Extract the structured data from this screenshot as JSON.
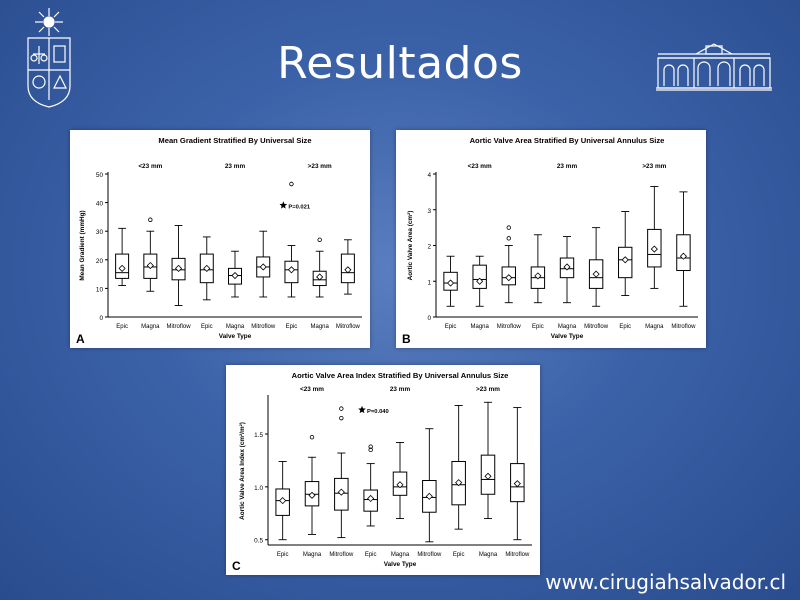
{
  "slide": {
    "title": "Resultados",
    "website": "www.cirugiahsalvador.cl"
  },
  "colors": {
    "background": "#3b62a8",
    "panel": "#ffffff",
    "ink": "#000000"
  },
  "logos": {
    "left": "university-crest-icon",
    "right": "hospital-building-icon"
  },
  "chart_data": [
    {
      "id": "A",
      "type": "box",
      "title": "Mean Gradient Stratified By Universal Size",
      "xlabel": "Valve Type",
      "ylabel": "Mean Gradient (mmHg)",
      "ylim": [
        0,
        50
      ],
      "yticks": [
        0,
        10,
        20,
        30,
        40,
        50
      ],
      "groups": [
        "<23 mm",
        "23 mm",
        ">23 mm"
      ],
      "categories": [
        "Epic",
        "Magna",
        "Mitroflow"
      ],
      "annotation": {
        "text": "P=0.021",
        "group": 2,
        "y": 38
      },
      "boxes": [
        {
          "min": 11,
          "q1": 13.5,
          "median": 15.5,
          "q3": 22,
          "max": 31,
          "mean": 17,
          "outliers": []
        },
        {
          "min": 9,
          "q1": 13.5,
          "median": 17.5,
          "q3": 22,
          "max": 30,
          "mean": 18,
          "outliers": [
            34
          ]
        },
        {
          "min": 4,
          "q1": 13,
          "median": 16.5,
          "q3": 20.5,
          "max": 32,
          "mean": 17,
          "outliers": []
        },
        {
          "min": 6,
          "q1": 12,
          "median": 16.5,
          "q3": 22,
          "max": 28,
          "mean": 17,
          "outliers": []
        },
        {
          "min": 7,
          "q1": 11.5,
          "median": 14.5,
          "q3": 17,
          "max": 23,
          "mean": 14.5,
          "outliers": []
        },
        {
          "min": 7,
          "q1": 14,
          "median": 17.5,
          "q3": 21,
          "max": 30,
          "mean": 17.5,
          "outliers": []
        },
        {
          "min": 7,
          "q1": 12,
          "median": 16.5,
          "q3": 19.5,
          "max": 25,
          "mean": 16.5,
          "outliers": [
            46.5
          ]
        },
        {
          "min": 7,
          "q1": 11,
          "median": 13,
          "q3": 16,
          "max": 23,
          "mean": 14,
          "outliers": [
            27
          ]
        },
        {
          "min": 8,
          "q1": 12,
          "median": 15.5,
          "q3": 22,
          "max": 27,
          "mean": 16.5,
          "outliers": []
        }
      ]
    },
    {
      "id": "B",
      "type": "box",
      "title": "Aortic Valve Area Stratified By Universal Annulus Size",
      "xlabel": "Valve Type",
      "ylabel": "Aortic Valve Area (cm²)",
      "ylim": [
        0,
        4
      ],
      "yticks": [
        0,
        1,
        2,
        3,
        4
      ],
      "groups": [
        "<23 mm",
        "23 mm",
        ">23 mm"
      ],
      "categories": [
        "Epic",
        "Magna",
        "Mitroflow"
      ],
      "boxes": [
        {
          "min": 0.3,
          "q1": 0.75,
          "median": 0.95,
          "q3": 1.25,
          "max": 1.7,
          "mean": 0.95,
          "outliers": []
        },
        {
          "min": 0.3,
          "q1": 0.8,
          "median": 1.05,
          "q3": 1.45,
          "max": 1.7,
          "mean": 1.0,
          "outliers": []
        },
        {
          "min": 0.4,
          "q1": 0.9,
          "median": 1.1,
          "q3": 1.4,
          "max": 2.0,
          "mean": 1.1,
          "outliers": [
            2.2,
            2.5
          ]
        },
        {
          "min": 0.4,
          "q1": 0.8,
          "median": 1.1,
          "q3": 1.4,
          "max": 2.3,
          "mean": 1.15,
          "outliers": []
        },
        {
          "min": 0.4,
          "q1": 1.1,
          "median": 1.35,
          "q3": 1.65,
          "max": 2.25,
          "mean": 1.4,
          "outliers": []
        },
        {
          "min": 0.3,
          "q1": 0.8,
          "median": 1.1,
          "q3": 1.6,
          "max": 2.5,
          "mean": 1.2,
          "outliers": []
        },
        {
          "min": 0.6,
          "q1": 1.1,
          "median": 1.6,
          "q3": 1.95,
          "max": 2.95,
          "mean": 1.6,
          "outliers": []
        },
        {
          "min": 0.8,
          "q1": 1.4,
          "median": 1.75,
          "q3": 2.45,
          "max": 3.65,
          "mean": 1.9,
          "outliers": []
        },
        {
          "min": 0.3,
          "q1": 1.3,
          "median": 1.65,
          "q3": 2.3,
          "max": 3.5,
          "mean": 1.7,
          "outliers": []
        }
      ]
    },
    {
      "id": "C",
      "type": "box",
      "title": "Aortic Valve Area Index Stratified By Universal Annulus Size",
      "xlabel": "Valve Type",
      "ylabel": "Aortic Valve Area Index (cm²/m²)",
      "ylim": [
        0.45,
        1.85
      ],
      "yticks": [
        0.5,
        1.0,
        1.5
      ],
      "groups": [
        "<23 mm",
        "23 mm",
        ">23 mm"
      ],
      "categories": [
        "Epic",
        "Magna",
        "Mitroflow"
      ],
      "annotation": {
        "text": "P=0.040",
        "group": 1,
        "y": 1.7
      },
      "boxes": [
        {
          "min": 0.5,
          "q1": 0.73,
          "median": 0.87,
          "q3": 0.98,
          "max": 1.24,
          "mean": 0.87,
          "outliers": []
        },
        {
          "min": 0.55,
          "q1": 0.82,
          "median": 0.93,
          "q3": 1.05,
          "max": 1.28,
          "mean": 0.92,
          "outliers": [
            1.47
          ]
        },
        {
          "min": 0.52,
          "q1": 0.78,
          "median": 0.94,
          "q3": 1.08,
          "max": 1.32,
          "mean": 0.95,
          "outliers": [
            1.65,
            1.74
          ]
        },
        {
          "min": 0.63,
          "q1": 0.77,
          "median": 0.88,
          "q3": 0.97,
          "max": 1.22,
          "mean": 0.89,
          "outliers": [
            1.35,
            1.38
          ]
        },
        {
          "min": 0.7,
          "q1": 0.92,
          "median": 1.0,
          "q3": 1.14,
          "max": 1.42,
          "mean": 1.02,
          "outliers": []
        },
        {
          "min": 0.48,
          "q1": 0.76,
          "median": 0.9,
          "q3": 1.06,
          "max": 1.55,
          "mean": 0.91,
          "outliers": []
        },
        {
          "min": 0.6,
          "q1": 0.83,
          "median": 1.02,
          "q3": 1.24,
          "max": 1.77,
          "mean": 1.04,
          "outliers": []
        },
        {
          "min": 0.7,
          "q1": 0.93,
          "median": 1.07,
          "q3": 1.3,
          "max": 1.8,
          "mean": 1.1,
          "outliers": []
        },
        {
          "min": 0.5,
          "q1": 0.86,
          "median": 1.0,
          "q3": 1.22,
          "max": 1.75,
          "mean": 1.03,
          "outliers": []
        }
      ]
    }
  ]
}
